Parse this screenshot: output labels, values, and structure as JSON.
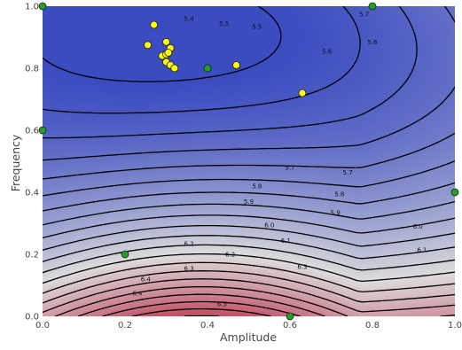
{
  "chart_data": {
    "type": "contour",
    "xlabel": "Amplitude",
    "ylabel": "Frequency",
    "xlim": [
      0.0,
      1.0
    ],
    "ylim": [
      0.0,
      1.0
    ],
    "x_ticks": [
      "0.0",
      "0.2",
      "0.4",
      "0.6",
      "0.8",
      "1.0"
    ],
    "y_ticks": [
      "0.0",
      "0.2",
      "0.4",
      "0.6",
      "0.8",
      "1.0"
    ],
    "colormap": {
      "low": "#3b4cc0",
      "mid": "#dddcdc",
      "high": "#b40426",
      "vmin": 5.35,
      "vmax": 6.55
    },
    "contour_levels": [
      5.35,
      5.4,
      5.45,
      5.5,
      5.55,
      5.6,
      5.65,
      5.7,
      5.75,
      5.8,
      5.85,
      5.9,
      5.95,
      6.0,
      6.05,
      6.1,
      6.15,
      6.2,
      6.25,
      6.3,
      6.35,
      6.4,
      6.45,
      6.5,
      6.55
    ],
    "contour_labels": [
      {
        "text": "5.4",
        "x": 0.355,
        "y": 0.96
      },
      {
        "text": "5.5",
        "x": 0.44,
        "y": 0.945
      },
      {
        "text": "5.5",
        "x": 0.52,
        "y": 0.935
      },
      {
        "text": "5.6",
        "x": 0.69,
        "y": 0.855
      },
      {
        "text": "5.6",
        "x": 0.8,
        "y": 0.885
      },
      {
        "text": "5.7",
        "x": 0.78,
        "y": 0.975
      },
      {
        "text": "5.7",
        "x": 0.6,
        "y": 0.48
      },
      {
        "text": "5.7",
        "x": 0.74,
        "y": 0.465
      },
      {
        "text": "5.8",
        "x": 0.52,
        "y": 0.42
      },
      {
        "text": "5.8",
        "x": 0.72,
        "y": 0.395
      },
      {
        "text": "5.9",
        "x": 0.5,
        "y": 0.37
      },
      {
        "text": "5.9",
        "x": 0.71,
        "y": 0.335
      },
      {
        "text": "6.0",
        "x": 0.55,
        "y": 0.295
      },
      {
        "text": "6.0",
        "x": 0.91,
        "y": 0.29
      },
      {
        "text": "6.1",
        "x": 0.59,
        "y": 0.245
      },
      {
        "text": "6.1",
        "x": 0.92,
        "y": 0.215
      },
      {
        "text": "6.2",
        "x": 0.355,
        "y": 0.235
      },
      {
        "text": "6.2",
        "x": 0.455,
        "y": 0.2
      },
      {
        "text": "6.3",
        "x": 0.355,
        "y": 0.155
      },
      {
        "text": "6.3",
        "x": 0.63,
        "y": 0.16
      },
      {
        "text": "6.4",
        "x": 0.25,
        "y": 0.12
      },
      {
        "text": "6.4",
        "x": 0.23,
        "y": 0.075
      },
      {
        "text": "6.5",
        "x": 0.435,
        "y": 0.04
      }
    ],
    "series": [
      {
        "marker_color": "#ffff00",
        "points": [
          [
            0.27,
            0.94
          ],
          [
            0.255,
            0.875
          ],
          [
            0.3,
            0.885
          ],
          [
            0.31,
            0.865
          ],
          [
            0.29,
            0.84
          ],
          [
            0.3,
            0.845
          ],
          [
            0.305,
            0.85
          ],
          [
            0.3,
            0.82
          ],
          [
            0.31,
            0.81
          ],
          [
            0.32,
            0.8
          ],
          [
            0.47,
            0.81
          ],
          [
            0.63,
            0.72
          ]
        ]
      },
      {
        "marker_color": "#22a022",
        "points": [
          [
            0.4,
            0.8
          ],
          [
            0.0,
            0.6
          ],
          [
            0.2,
            0.2
          ],
          [
            1.0,
            0.4
          ],
          [
            0.8,
            1.0
          ],
          [
            0.6,
            0.0
          ],
          [
            0.0,
            1.0
          ]
        ]
      }
    ]
  }
}
